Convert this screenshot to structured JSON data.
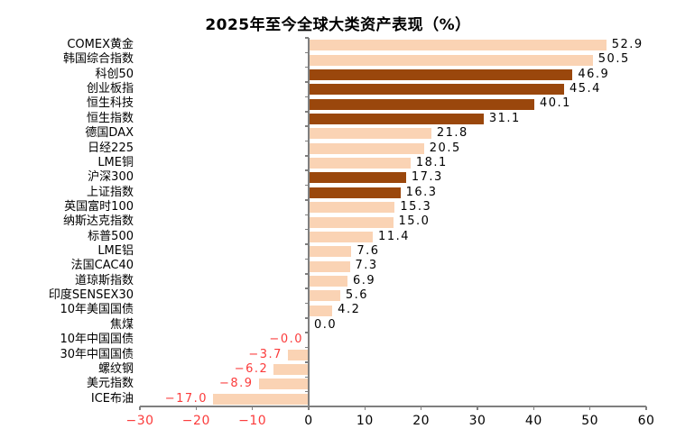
{
  "chart_data": {
    "type": "bar",
    "orientation": "horizontal",
    "title": "2025年至今全球大类资产表现（%）",
    "categories": [
      "COMEX黄金",
      "韩国综合指数",
      "科创50",
      "创业板指",
      "恒生科技",
      "恒生指数",
      "德国DAX",
      "日经225",
      "LME铜",
      "沪深300",
      "上证指数",
      "英国富时100",
      "纳斯达克指数",
      "标普500",
      "LME铝",
      "法国CAC40",
      "道琼斯指数",
      "印度SENSEX30",
      "10年美国国债",
      "焦煤",
      "10年中国国债",
      "30年中国国债",
      "螺纹钢",
      "美元指数",
      "ICE布油"
    ],
    "values": [
      52.9,
      50.5,
      46.9,
      45.4,
      40.1,
      31.1,
      21.8,
      20.5,
      18.1,
      17.3,
      16.3,
      15.3,
      15.0,
      11.4,
      7.6,
      7.3,
      6.9,
      5.6,
      4.2,
      0.0,
      -0.0,
      -3.7,
      -6.2,
      -8.9,
      -17.0
    ],
    "value_labels": [
      "52.9",
      "50.5",
      "46.9",
      "45.4",
      "40.1",
      "31.1",
      "21.8",
      "20.5",
      "18.1",
      "17.3",
      "16.3",
      "15.3",
      "15.0",
      "11.4",
      "7.6",
      "7.3",
      "6.9",
      "5.6",
      "4.2",
      "0.0",
      "−0.0",
      "−3.7",
      "−6.2",
      "−8.9",
      "−17.0"
    ],
    "negative_flags": [
      false,
      false,
      false,
      false,
      false,
      false,
      false,
      false,
      false,
      false,
      false,
      false,
      false,
      false,
      false,
      false,
      false,
      false,
      false,
      false,
      true,
      true,
      true,
      true,
      true
    ],
    "bar_tone": [
      "light",
      "light",
      "dark",
      "dark",
      "dark",
      "dark",
      "light",
      "light",
      "light",
      "dark",
      "dark",
      "light",
      "light",
      "light",
      "light",
      "light",
      "light",
      "light",
      "light",
      "light",
      "light",
      "light",
      "light",
      "light",
      "light"
    ],
    "xlim": [
      -30,
      60
    ],
    "x_ticks": [
      -30,
      -20,
      -10,
      0,
      10,
      20,
      30,
      40,
      50,
      60
    ],
    "x_tick_labels": [
      "−30",
      "−20",
      "−10",
      "0",
      "10",
      "20",
      "30",
      "40",
      "50",
      "60"
    ],
    "grid": false,
    "legend": "none",
    "colors": {
      "light_bar": "#FAD3B4",
      "dark_bar": "#9A470C",
      "negative_text": "#FB3B3B",
      "positive_text": "#000000",
      "axis": "#7f7f7f"
    }
  }
}
